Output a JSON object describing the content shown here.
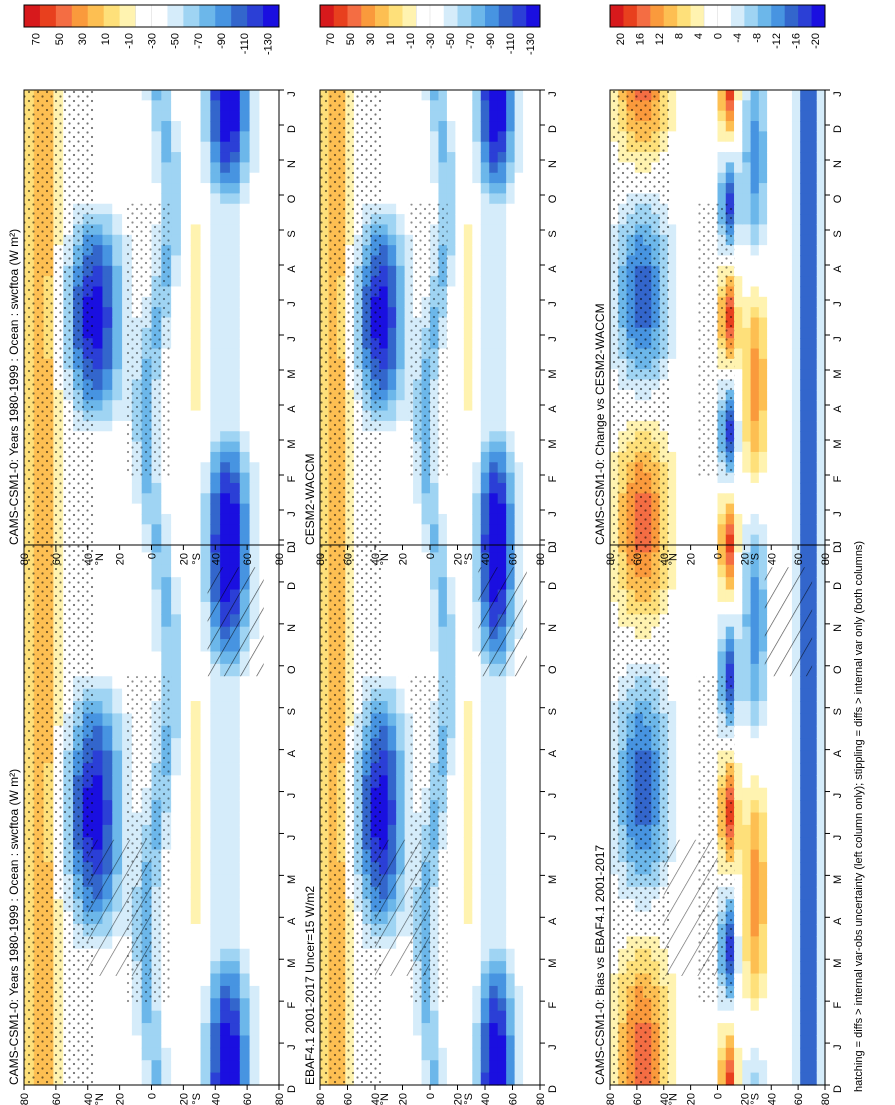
{
  "figure": {
    "footnote": "hatching = diffs > internal var-obs uncertainty (left column only); stippling = diffs > internal var only (both columns)",
    "orientation": "rotated 90° clockwise"
  },
  "chart_data": [
    {
      "id": "p1",
      "type": "heatmap",
      "title": "CAMS-CSM1-0: Years 1980-1999 : Ocean : swcftoa (W m²)",
      "x_ticks": [
        "D",
        "J",
        "F",
        "M",
        "A",
        "M",
        "J",
        "J",
        "A",
        "S",
        "O",
        "N",
        "D",
        "J"
      ],
      "y_ticks": [
        "80",
        "60",
        "40",
        "20",
        "0",
        "20",
        "40",
        "60",
        "80"
      ],
      "y_tick_units": [
        "°N",
        "°S"
      ],
      "colorbar": {
        "labels": [
          "70",
          "50",
          "30",
          "10",
          "-10",
          "-30",
          "-50",
          "-70",
          "-90",
          "-110",
          "-130"
        ]
      },
      "overlays": [
        "hatching",
        "stippling"
      ]
    },
    {
      "id": "p2",
      "type": "heatmap",
      "title": "CAMS-CSM1-0: Years 1980-1999 : Ocean : swcftoa (W m²)",
      "x_ticks": [
        "D",
        "J",
        "F",
        "M",
        "A",
        "M",
        "J",
        "J",
        "A",
        "S",
        "O",
        "N",
        "D",
        "J"
      ],
      "y_ticks": [
        "80",
        "60",
        "40",
        "20",
        "0",
        "20",
        "40",
        "60",
        "80"
      ],
      "y_tick_units": [
        "°N",
        "°S"
      ],
      "colorbar": {
        "labels": [
          "70",
          "50",
          "30",
          "10",
          "-10",
          "-30",
          "-50",
          "-70",
          "-90",
          "-110",
          "-130"
        ]
      },
      "overlays": [
        "stippling"
      ]
    },
    {
      "id": "p3",
      "type": "heatmap",
      "title": "EBAF4.1 2001-2017 Uncer=15 W/m2",
      "x_ticks": [
        "D",
        "J",
        "F",
        "M",
        "A",
        "M",
        "J",
        "J",
        "A",
        "S",
        "O",
        "N",
        "D",
        "J"
      ],
      "y_ticks": [
        "80",
        "60",
        "40",
        "20",
        "0",
        "20",
        "40",
        "60",
        "80"
      ],
      "y_tick_units": [
        "°N",
        "°S"
      ],
      "colorbar": {
        "labels": [
          "70",
          "50",
          "30",
          "10",
          "-10",
          "-30",
          "-50",
          "-70",
          "-90",
          "-110",
          "-130"
        ]
      },
      "overlays": [
        "hatching",
        "stippling"
      ]
    },
    {
      "id": "p4",
      "type": "heatmap",
      "title": "CESM2-WACCM",
      "x_ticks": [
        "D",
        "J",
        "F",
        "M",
        "A",
        "M",
        "J",
        "J",
        "A",
        "S",
        "O",
        "N",
        "D",
        "J"
      ],
      "y_ticks": [
        "80",
        "60",
        "40",
        "20",
        "0",
        "20",
        "40",
        "60",
        "80"
      ],
      "y_tick_units": [
        "°N",
        "°S"
      ],
      "colorbar": {
        "labels": [
          "70",
          "50",
          "30",
          "10",
          "-10",
          "-30",
          "-50",
          "-70",
          "-90",
          "-110",
          "-130"
        ]
      },
      "overlays": [
        "stippling"
      ]
    },
    {
      "id": "p5",
      "type": "heatmap",
      "title": "CAMS-CSM1-0: Bias vs EBAF4.1 2001-2017",
      "x_ticks": [
        "D",
        "J",
        "F",
        "M",
        "A",
        "M",
        "J",
        "J",
        "A",
        "S",
        "O",
        "N",
        "D",
        "J"
      ],
      "y_ticks": [
        "80",
        "60",
        "40",
        "20",
        "0",
        "20",
        "40",
        "60",
        "80"
      ],
      "y_tick_units": [
        "°N",
        "°S"
      ],
      "colorbar": {
        "labels": [
          "20",
          "16",
          "12",
          "8",
          "4",
          "0",
          "-4",
          "-8",
          "-12",
          "-16",
          "-20"
        ]
      },
      "overlays": [
        "hatching",
        "stippling"
      ]
    },
    {
      "id": "p6",
      "type": "heatmap",
      "title": "CAMS-CSM1-0: Change vs CESM2-WACCM",
      "x_ticks": [
        "D",
        "J",
        "F",
        "M",
        "A",
        "M",
        "J",
        "J",
        "A",
        "S",
        "O",
        "N",
        "D",
        "J"
      ],
      "y_ticks": [
        "80",
        "60",
        "40",
        "20",
        "0",
        "20",
        "40",
        "60",
        "80"
      ],
      "y_tick_units": [
        "°N",
        "°S"
      ],
      "colorbar": {
        "labels": [
          "20",
          "16",
          "12",
          "8",
          "4",
          "0",
          "-4",
          "-8",
          "-12",
          "-16",
          "-20"
        ]
      },
      "overlays": [
        "stippling"
      ]
    }
  ],
  "palette": [
    "#d7191c",
    "#e8401e",
    "#f46d43",
    "#fa9a3c",
    "#fdbf52",
    "#fee07a",
    "#fff3b0",
    "#ffffff",
    "#ffffff",
    "#d5ecfa",
    "#9fd4f3",
    "#6cb7ea",
    "#4794e1",
    "#3366cc",
    "#2b3fd6",
    "#1a0fe0"
  ]
}
